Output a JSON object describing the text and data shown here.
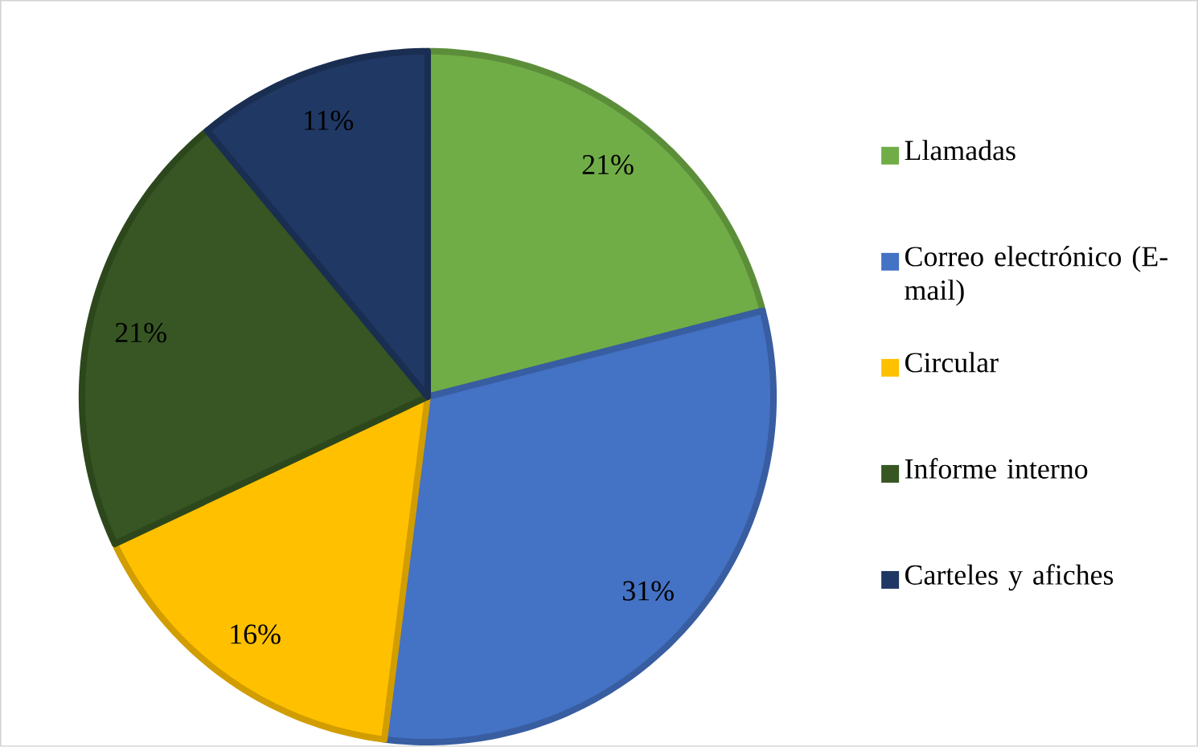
{
  "chart_data": {
    "type": "pie",
    "categories": [
      "Llamadas",
      "Correo electrónico (E-mail)",
      "Circular",
      "Informe interno",
      "Carteles y afiches"
    ],
    "values": [
      21,
      31,
      16,
      21,
      11
    ],
    "value_labels": [
      "21%",
      "31%",
      "16%",
      "21%",
      "11%"
    ],
    "colors": [
      "#70ad47",
      "#4472c4",
      "#ffc000",
      "#375623",
      "#203864"
    ],
    "legend": "right"
  }
}
